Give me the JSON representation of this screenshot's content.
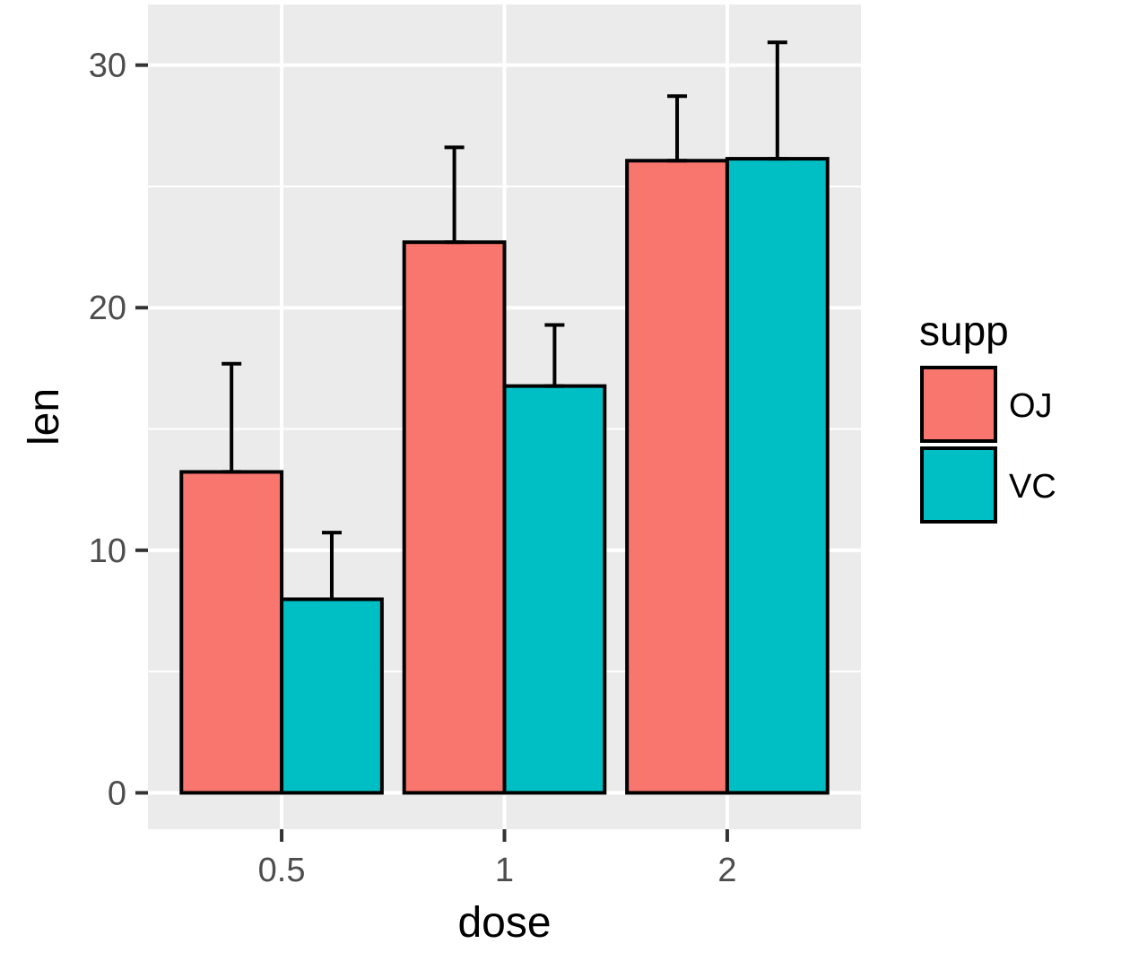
{
  "chart_data": {
    "type": "bar",
    "xlabel": "dose",
    "ylabel": "len",
    "categories": [
      "0.5",
      "1",
      "2"
    ],
    "ylim": [
      -1.5,
      32.5
    ],
    "yticks": [
      0,
      10,
      20,
      30
    ],
    "yticklabels": [
      "0",
      "10",
      "20",
      "30"
    ],
    "grid": true,
    "error_bars": true,
    "legend": {
      "title": "supp",
      "position": "right"
    },
    "series": [
      {
        "name": "OJ",
        "color": "#F8766D",
        "values": [
          13.23,
          22.7,
          26.06
        ],
        "errors": [
          4.46,
          3.91,
          2.66
        ]
      },
      {
        "name": "VC",
        "color": "#00BFC4",
        "values": [
          7.98,
          16.77,
          26.14
        ],
        "errors": [
          2.75,
          2.52,
          4.8
        ]
      }
    ],
    "colors": {
      "panel_background": "#EBEBEB",
      "grid_major": "#FFFFFF",
      "bar_outline": "#000000",
      "tick_text": "#4D4D4D"
    }
  }
}
